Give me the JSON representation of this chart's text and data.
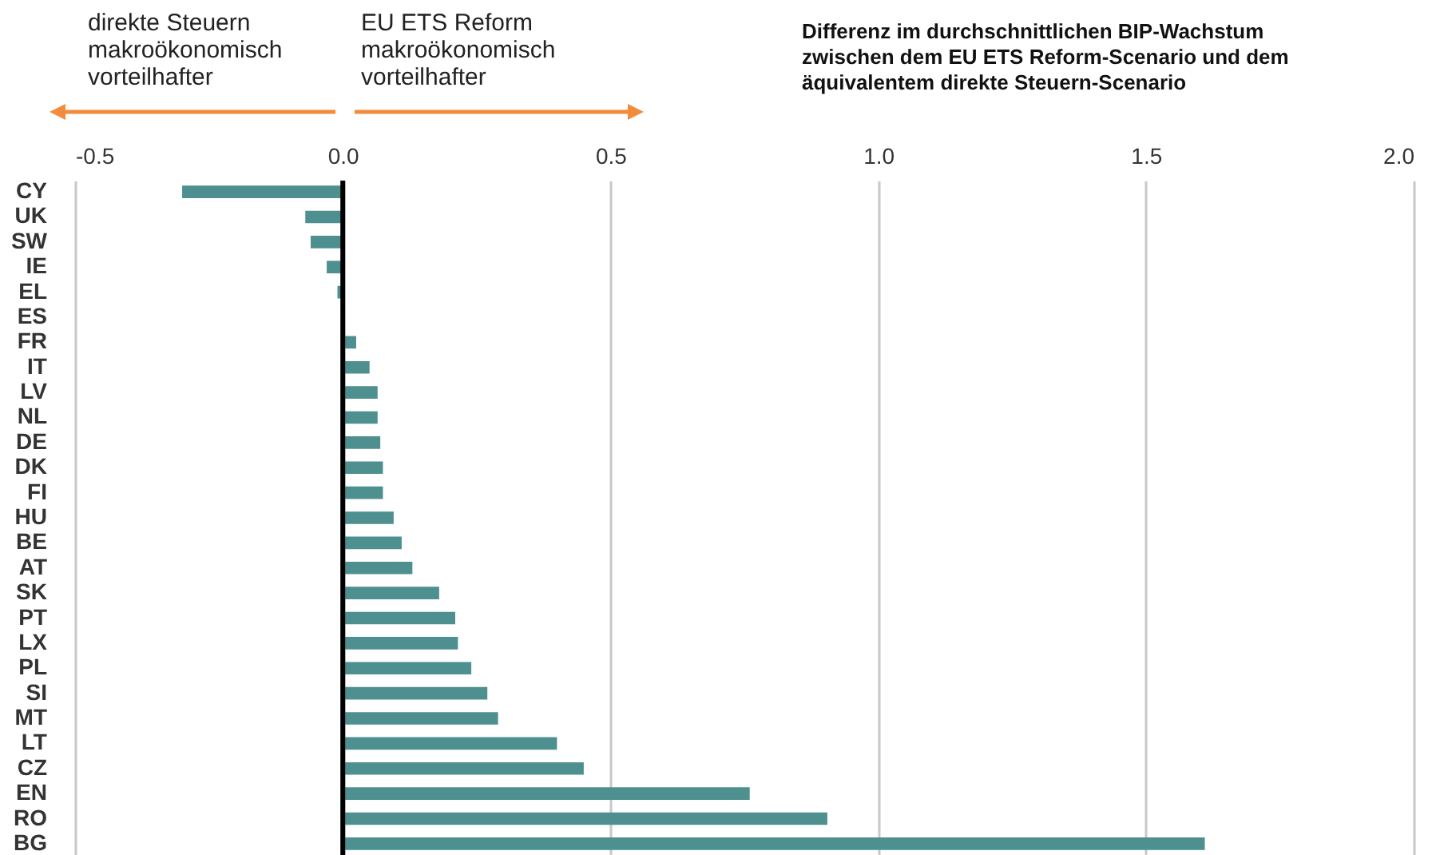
{
  "chart_data": {
    "type": "bar",
    "orientation": "horizontal",
    "title": "Differenz im durchschnittlichen BIP-Wachstum zwischen dem EU ETS Reform-Scenario und dem äquivalentem direkte Steuern-Scenario",
    "annotations": [
      "direkte Steuern makroökonomisch vorteilhafter",
      "EU ETS Reform makroökonomisch vorteilhafter"
    ],
    "categories": [
      "CY",
      "UK",
      "SW",
      "IE",
      "EL",
      "ES",
      "FR",
      "IT",
      "LV",
      "NL",
      "DE",
      "DK",
      "FI",
      "HU",
      "BE",
      "AT",
      "SK",
      "PT",
      "LX",
      "PL",
      "SI",
      "MT",
      "LT",
      "CZ",
      "EN",
      "RO",
      "BG"
    ],
    "values": [
      -0.3,
      -0.07,
      -0.06,
      -0.03,
      -0.01,
      null,
      0.025,
      0.05,
      0.065,
      0.065,
      0.07,
      0.075,
      0.075,
      0.095,
      0.11,
      0.13,
      0.18,
      0.21,
      0.215,
      0.24,
      0.27,
      0.29,
      0.4,
      0.45,
      0.76,
      0.905,
      1.61
    ],
    "color": "#4e8f8f",
    "xlim": [
      -0.5,
      2.0
    ],
    "xticks": [
      {
        "value": -0.5,
        "label": "-0.5"
      },
      {
        "value": 0,
        "label": "0.0"
      },
      {
        "value": 0.5,
        "label": "0.5"
      },
      {
        "value": 1,
        "label": "1.0"
      },
      {
        "value": 1.5,
        "label": "1.5"
      },
      {
        "value": 2,
        "label": "2.0"
      }
    ],
    "grid": "x",
    "ref_lines": [
      {
        "axis": "x",
        "value": 0,
        "color": "#000000"
      }
    ]
  }
}
